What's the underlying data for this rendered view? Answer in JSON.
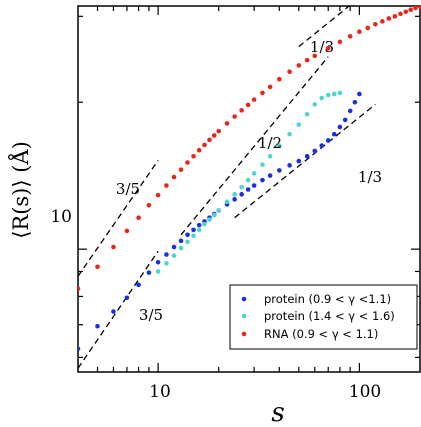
{
  "chart_data": {
    "type": "scatter",
    "title": "",
    "xlabel": "s",
    "ylabel": "⟨R(s)⟩ (Å)",
    "x_scale": "log",
    "y_scale": "log",
    "xlim": [
      4,
      200
    ],
    "ylim": [
      5.6,
      31.5
    ],
    "x_ticks": [
      10,
      100
    ],
    "x_tick_labels": [
      "10",
      "100"
    ],
    "y_ticks": [
      10
    ],
    "y_tick_labels": [
      "10"
    ],
    "grid": false,
    "legend_position": "bottom-right",
    "series": [
      {
        "name": "protein (0.9 < γ <1.1)",
        "color": "#1a2fe0",
        "x": [
          4,
          5,
          6,
          7,
          8,
          9,
          10,
          11,
          12,
          13,
          14,
          15,
          16,
          17,
          18,
          19,
          20,
          22,
          24,
          26,
          28,
          30,
          33,
          36,
          40,
          45,
          50,
          55,
          60,
          65,
          70,
          75,
          80,
          85,
          90,
          95,
          100
        ],
        "y": [
          6.25,
          6.95,
          7.45,
          7.95,
          8.45,
          8.95,
          9.4,
          9.75,
          10.1,
          10.4,
          10.7,
          10.95,
          11.2,
          11.4,
          11.6,
          11.8,
          12.0,
          12.35,
          12.65,
          12.95,
          13.25,
          13.5,
          13.85,
          14.15,
          14.5,
          14.85,
          15.15,
          15.5,
          15.9,
          16.3,
          16.7,
          17.2,
          17.8,
          18.4,
          19.2,
          20.0,
          20.8
        ]
      },
      {
        "name": "protein (1.4 < γ < 1.6)",
        "color": "#4fd4d4",
        "x": [
          10,
          11,
          12,
          13,
          14,
          15,
          16,
          17,
          18,
          19,
          20,
          22,
          24,
          26,
          28,
          30,
          33,
          36,
          40,
          45,
          50,
          55,
          60,
          65,
          70,
          75,
          80
        ],
        "y": [
          9.0,
          9.35,
          9.7,
          10.05,
          10.35,
          10.65,
          10.95,
          11.25,
          11.5,
          11.75,
          12.0,
          12.5,
          12.95,
          13.4,
          13.85,
          14.3,
          14.9,
          15.5,
          16.3,
          17.2,
          18.0,
          18.9,
          19.8,
          20.4,
          20.7,
          20.8,
          20.9
        ]
      },
      {
        "name": "RNA (0.9 < γ < 1.1)",
        "color": "#e8261c",
        "x": [
          4,
          5,
          6,
          7,
          8,
          9,
          10,
          11,
          12,
          13,
          14,
          15,
          16,
          17,
          18,
          19,
          20,
          22,
          24,
          26,
          28,
          30,
          33,
          36,
          40,
          45,
          50,
          55,
          60,
          70,
          80,
          90,
          100,
          110,
          120,
          130,
          140,
          150,
          160,
          170,
          180,
          190,
          200
        ],
        "y": [
          8.3,
          9.2,
          10.1,
          10.9,
          11.6,
          12.3,
          12.9,
          13.5,
          14.05,
          14.55,
          15.05,
          15.5,
          15.95,
          16.35,
          16.75,
          17.1,
          17.45,
          18.1,
          18.7,
          19.25,
          19.75,
          20.25,
          20.9,
          21.5,
          22.3,
          23.1,
          23.8,
          24.4,
          24.9,
          25.8,
          26.6,
          27.3,
          27.9,
          28.4,
          28.9,
          29.3,
          29.7,
          30.0,
          30.35,
          30.65,
          30.95,
          31.2,
          31.45
        ]
      }
    ],
    "guide_lines": [
      {
        "label": "3/5",
        "x1": 4,
        "y1": 8.8,
        "x2": 10.0,
        "y2": 15.2
      },
      {
        "label": "3/5",
        "x1": 4,
        "y1": 5.7,
        "x2": 10.0,
        "y2": 9.9
      },
      {
        "label": "1/2",
        "x1": 13,
        "y1": 10.7,
        "x2": 70,
        "y2": 24.8
      },
      {
        "label": "1/3",
        "x1": 24,
        "y1": 11.6,
        "x2": 120,
        "y2": 19.8
      },
      {
        "label": "1/3",
        "x1": 50,
        "y1": 26.0,
        "x2": 200,
        "y2": 41.3
      }
    ],
    "annotations": [
      "3/5",
      "3/5",
      "1/2",
      "1/3",
      "1/3"
    ]
  }
}
